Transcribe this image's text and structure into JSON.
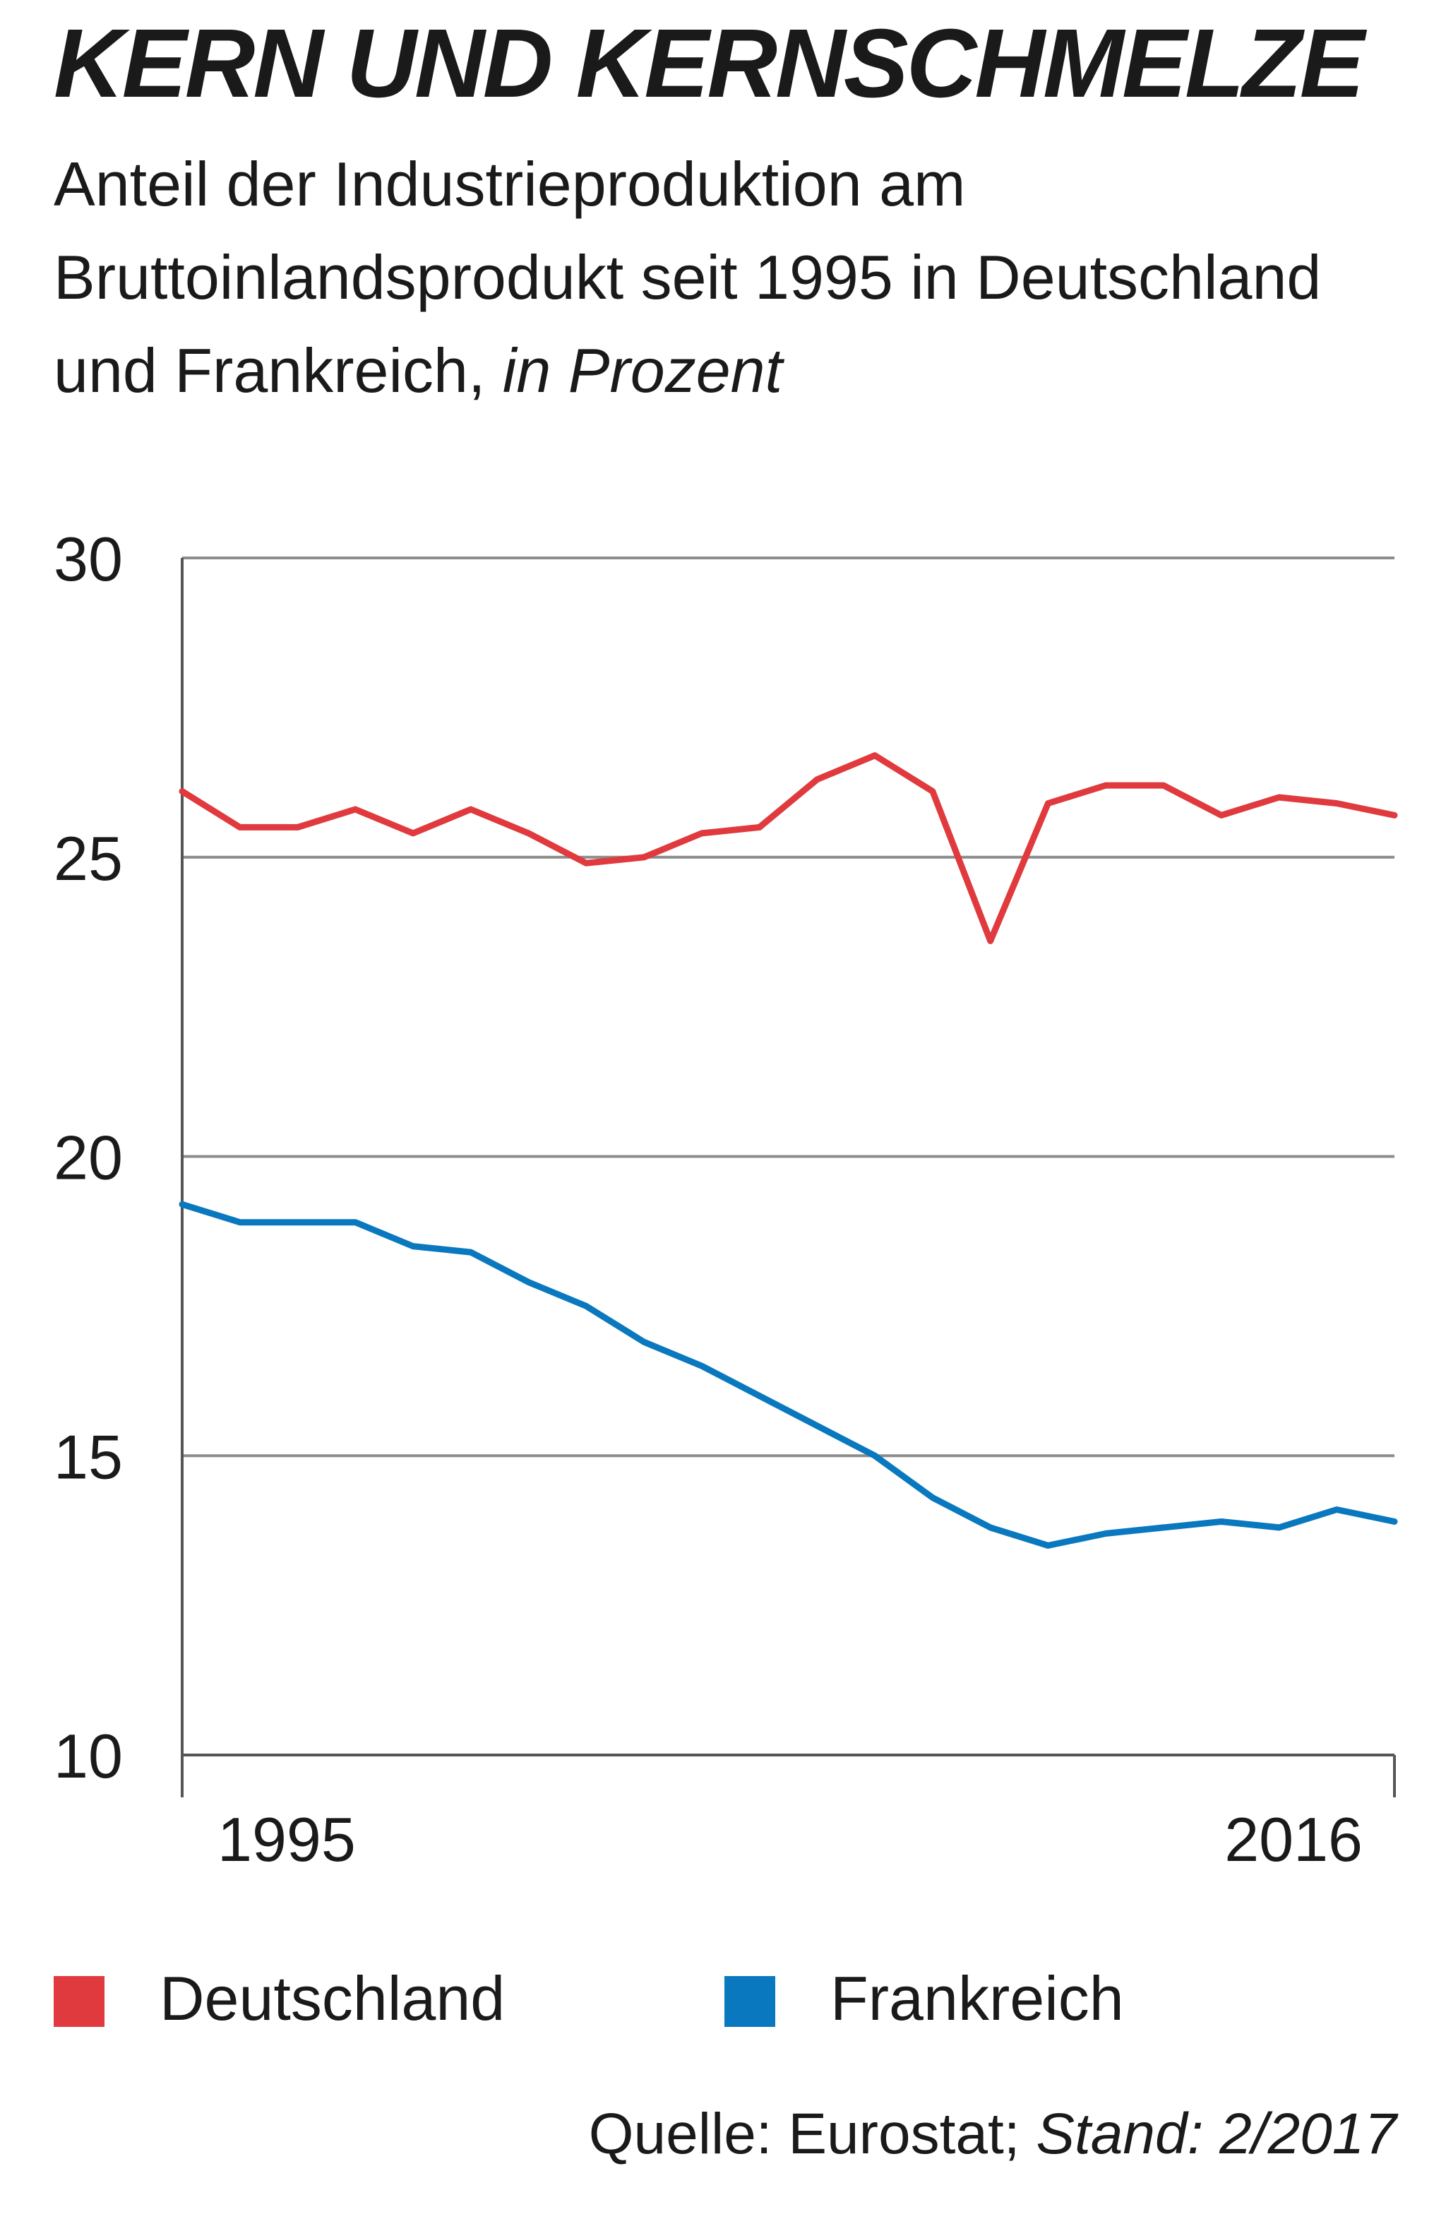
{
  "title": "KERN UND KERNSCHMELZE",
  "subtitle": "Anteil der Industrieproduktion am Bruttoinlandsprodukt seit 1995 in Deutschland und Frankreich,",
  "subtitle_unit": "in Prozent",
  "source_label": "Quelle: Eurostat;",
  "source_stand": "Stand: 2/2017",
  "colors": {
    "deutschland": "#e03a3e",
    "frankreich": "#0a78be",
    "grid": "#8c8c8c",
    "axis": "#555555"
  },
  "chart_data": {
    "type": "line",
    "title": "KERN UND KERNSCHMELZE",
    "xlabel": "",
    "ylabel": "",
    "x": [
      1995,
      1996,
      1997,
      1998,
      1999,
      2000,
      2001,
      2002,
      2003,
      2004,
      2005,
      2006,
      2007,
      2008,
      2009,
      2010,
      2011,
      2012,
      2013,
      2014,
      2015,
      2016
    ],
    "x_tick_labels": [
      "1995",
      "2016"
    ],
    "ylim": [
      10,
      30
    ],
    "y_ticks": [
      10,
      15,
      20,
      25,
      30
    ],
    "y_tick_labels": [
      "10",
      "15",
      "20",
      "25",
      "30"
    ],
    "grid": true,
    "legend_position": "bottom",
    "series": [
      {
        "name": "Deutschland",
        "color": "#e03a3e",
        "values": [
          26.1,
          25.5,
          25.5,
          25.8,
          25.4,
          25.8,
          25.4,
          24.9,
          25.0,
          25.4,
          25.5,
          26.3,
          26.7,
          26.1,
          23.6,
          25.9,
          26.2,
          26.2,
          25.7,
          26.0,
          25.9,
          25.7
        ]
      },
      {
        "name": "Frankreich",
        "color": "#0a78be",
        "values": [
          19.2,
          18.9,
          18.9,
          18.9,
          18.5,
          18.4,
          17.9,
          17.5,
          16.9,
          16.5,
          16.0,
          15.5,
          15.0,
          14.3,
          13.8,
          13.5,
          13.7,
          13.8,
          13.9,
          13.8,
          14.1,
          13.9
        ]
      }
    ]
  }
}
